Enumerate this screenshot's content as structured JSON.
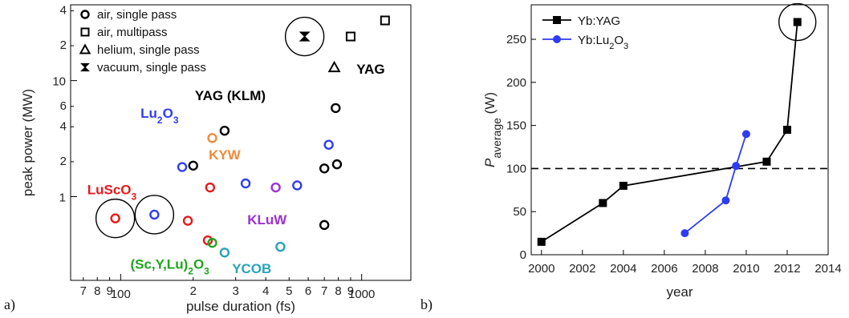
{
  "panels": {
    "a": "a)",
    "b": "b)"
  },
  "chart_data": [
    {
      "type": "scatter",
      "xlabel": "pulse duration (fs)",
      "ylabel": "peak power (MW)",
      "xscale": "log",
      "yscale": "log",
      "xlim": [
        62,
        1600
      ],
      "ylim": [
        0.19,
        45
      ],
      "grid": false,
      "legend_position": "top-left",
      "x_major_ticks": [
        {
          "v": 100,
          "label": "100"
        },
        {
          "v": 1000,
          "label": "1000"
        }
      ],
      "x_minor_ticks": [
        {
          "v": 70,
          "label": "7"
        },
        {
          "v": 80,
          "label": "8"
        },
        {
          "v": 90,
          "label": "9"
        },
        {
          "v": 200,
          "label": "2"
        },
        {
          "v": 300,
          "label": "3"
        },
        {
          "v": 400,
          "label": "4"
        },
        {
          "v": 500,
          "label": "5"
        },
        {
          "v": 600,
          "label": "6"
        },
        {
          "v": 700,
          "label": "7"
        },
        {
          "v": 800,
          "label": "8"
        },
        {
          "v": 900,
          "label": "9"
        }
      ],
      "y_major_ticks": [
        {
          "v": 1,
          "label": "1"
        },
        {
          "v": 10,
          "label": "10"
        }
      ],
      "y_minor_ticks": [
        {
          "v": 2,
          "label": "2"
        },
        {
          "v": 4,
          "label": "4"
        },
        {
          "v": 6,
          "label": "6"
        },
        {
          "v": 20,
          "label": "2"
        },
        {
          "v": 40,
          "label": "4"
        }
      ],
      "legend": [
        {
          "marker": "circle",
          "label": "air, single pass"
        },
        {
          "marker": "square",
          "label": "air, multipass"
        },
        {
          "marker": "triangle",
          "label": "helium, single pass"
        },
        {
          "marker": "bowtie",
          "label": "vacuum, single pass"
        }
      ],
      "series": [
        {
          "name": "YAG",
          "color": "#000000",
          "points": [
            {
              "x": 700,
              "y": 0.57,
              "m": "circle"
            },
            {
              "x": 700,
              "y": 1.75,
              "m": "circle"
            },
            {
              "x": 790,
              "y": 1.9,
              "m": "circle"
            },
            {
              "x": 780,
              "y": 5.8,
              "m": "circle"
            },
            {
              "x": 770,
              "y": 13,
              "m": "triangle"
            },
            {
              "x": 900,
              "y": 24,
              "m": "square"
            },
            {
              "x": 1250,
              "y": 33,
              "m": "square"
            }
          ]
        },
        {
          "name": "YAG (KLM)",
          "color": "#000000",
          "points": [
            {
              "x": 200,
              "y": 1.85,
              "m": "circle"
            },
            {
              "x": 270,
              "y": 3.7,
              "m": "circle"
            },
            {
              "x": 580,
              "y": 24,
              "m": "bowtie"
            }
          ]
        },
        {
          "name": "Lu2O3",
          "color": "#2f3cf4",
          "points": [
            {
              "x": 138,
              "y": 0.7,
              "m": "circle"
            },
            {
              "x": 180,
              "y": 1.8,
              "m": "circle"
            },
            {
              "x": 330,
              "y": 1.3,
              "m": "circle"
            },
            {
              "x": 540,
              "y": 1.25,
              "m": "circle"
            },
            {
              "x": 730,
              "y": 2.8,
              "m": "circle"
            }
          ]
        },
        {
          "name": "KYW",
          "color": "#f08a3c",
          "points": [
            {
              "x": 240,
              "y": 3.2,
              "m": "circle"
            }
          ]
        },
        {
          "name": "LuScO3",
          "color": "#e8191c",
          "points": [
            {
              "x": 95,
              "y": 0.65,
              "m": "circle"
            },
            {
              "x": 190,
              "y": 0.62,
              "m": "circle"
            },
            {
              "x": 235,
              "y": 1.2,
              "m": "circle"
            },
            {
              "x": 230,
              "y": 0.42,
              "m": "circle"
            }
          ]
        },
        {
          "name": "KLuW",
          "color": "#9b30d8",
          "points": [
            {
              "x": 440,
              "y": 1.2,
              "m": "circle"
            }
          ]
        },
        {
          "name": "(Sc,Y,Lu)2O3",
          "color": "#1ea51e",
          "points": [
            {
              "x": 240,
              "y": 0.4,
              "m": "circle"
            }
          ]
        },
        {
          "name": "YCOB",
          "color": "#2aa2b8",
          "points": [
            {
              "x": 270,
              "y": 0.33,
              "m": "circle"
            },
            {
              "x": 460,
              "y": 0.37,
              "m": "circle"
            }
          ]
        }
      ],
      "labels": [
        {
          "text": "YAG",
          "color": "#000000",
          "x": 1090,
          "y": 11.5
        },
        {
          "text": "YAG (KLM)",
          "color": "#000000",
          "x": 285,
          "y": 6.8
        },
        {
          "text": "KYW",
          "color": "#f08a3c",
          "x": 270,
          "y": 2.1
        },
        {
          "text": "KLuW",
          "color": "#9b30d8",
          "x": 405,
          "y": 0.58
        },
        {
          "text": "YCOB",
          "color": "#2aa2b8",
          "x": 350,
          "y": 0.22
        },
        {
          "text": "Lu",
          "sub": "2",
          "rest": "O",
          "sub2": "3",
          "color": "#2f3cf4",
          "x": 145,
          "y": 4.8
        },
        {
          "text": "LuSc",
          "sub": "",
          "rest": "O",
          "sub2": "3",
          "color": "#e8191c",
          "x": 92,
          "y": 1.05
        },
        {
          "text": "(Sc,Y,Lu)",
          "sub": "2",
          "rest": "O",
          "sub2": "3",
          "color": "#1ea51e",
          "x": 160,
          "y": 0.24
        }
      ],
      "highlight_circles": [
        {
          "x": 95,
          "y": 0.65
        },
        {
          "x": 138,
          "y": 0.7
        },
        {
          "x": 580,
          "y": 24
        }
      ]
    },
    {
      "type": "line",
      "xlabel": "year",
      "ylabel": "P",
      "ylabel_sub": "average",
      "ylabel_unit": " (W)",
      "xlim": [
        1999.5,
        2014
      ],
      "ylim": [
        0,
        290
      ],
      "xticks": [
        2000,
        2002,
        2004,
        2006,
        2008,
        2010,
        2012,
        2014
      ],
      "yticks": [
        0,
        50,
        100,
        150,
        200,
        250
      ],
      "grid": false,
      "legend_position": "top-left",
      "reference_line": {
        "y": 100,
        "style": "dashed"
      },
      "series": [
        {
          "name": "Yb:YAG",
          "color": "#000000",
          "marker": "square",
          "x": [
            2000,
            2003,
            2004,
            2011,
            2012,
            2012.5
          ],
          "y": [
            15,
            60,
            80,
            108,
            145,
            270
          ]
        },
        {
          "name": "Yb:Lu2O3",
          "name_text": "Yb:Lu",
          "name_sub": "2",
          "name_rest": "O",
          "name_sub2": "3",
          "color": "#2f3cf4",
          "marker": "circle",
          "x": [
            2007,
            2009,
            2009.5,
            2010
          ],
          "y": [
            25,
            63,
            103,
            140
          ]
        }
      ],
      "highlight_circles": [
        {
          "x": 2012.5,
          "y": 270
        }
      ]
    }
  ]
}
